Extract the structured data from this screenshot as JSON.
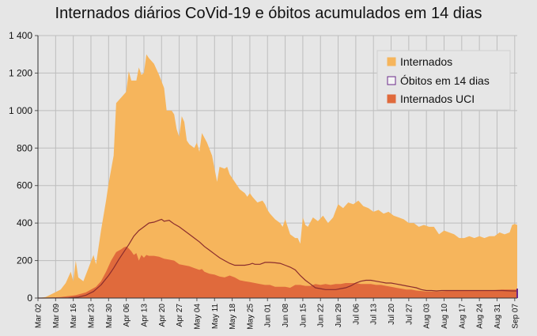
{
  "chart_data": {
    "type": "area",
    "title": "Internados diários CoVid-19 e óbitos acumulados em 14 dias",
    "xlabel": "",
    "ylabel": "",
    "ylim": [
      0,
      1400
    ],
    "yticks": [
      0,
      200,
      400,
      600,
      800,
      1000,
      1200,
      1400
    ],
    "ytick_labels": [
      "0",
      "200",
      "400",
      "600",
      "800",
      "1 000",
      "1 200",
      "1 400"
    ],
    "xlim": [
      1,
      191
    ],
    "x_ticks": [
      {
        "label": "Mar 02",
        "day": 1
      },
      {
        "label": "Mar 09",
        "day": 8
      },
      {
        "label": "Mar 16",
        "day": 15
      },
      {
        "label": "Mar 23",
        "day": 22
      },
      {
        "label": "Mar 30",
        "day": 29
      },
      {
        "label": "Apr 06",
        "day": 36
      },
      {
        "label": "Apr 13",
        "day": 43
      },
      {
        "label": "Apr 20",
        "day": 50
      },
      {
        "label": "Apr 27",
        "day": 57
      },
      {
        "label": "May 04",
        "day": 64
      },
      {
        "label": "May 11",
        "day": 71
      },
      {
        "label": "May 18",
        "day": 78
      },
      {
        "label": "May 25",
        "day": 85
      },
      {
        "label": "Jun 01",
        "day": 92
      },
      {
        "label": "Jun 08",
        "day": 99
      },
      {
        "label": "Jun 15",
        "day": 106
      },
      {
        "label": "Jun 22",
        "day": 113
      },
      {
        "label": "Jun 29",
        "day": 120
      },
      {
        "label": "Jul 06",
        "day": 127
      },
      {
        "label": "Jul 13",
        "day": 134
      },
      {
        "label": "Jul 20",
        "day": 141
      },
      {
        "label": "Jul 27",
        "day": 148
      },
      {
        "label": "Aug 03",
        "day": 155
      },
      {
        "label": "Aug 10",
        "day": 162
      },
      {
        "label": "Aug 17",
        "day": 169
      },
      {
        "label": "Aug 24",
        "day": 176
      },
      {
        "label": "Aug 31",
        "day": 183
      },
      {
        "label": "Sep 07",
        "day": 190
      }
    ],
    "grid": true,
    "legend_position": "top-right",
    "series": [
      {
        "name": "Internados",
        "kind": "area",
        "color": "#f6b55c",
        "points": [
          [
            1,
            0
          ],
          [
            4,
            5
          ],
          [
            7,
            25
          ],
          [
            10,
            45
          ],
          [
            12,
            80
          ],
          [
            14,
            140
          ],
          [
            15,
            90
          ],
          [
            16,
            200
          ],
          [
            17,
            110
          ],
          [
            19,
            90
          ],
          [
            21,
            160
          ],
          [
            23,
            230
          ],
          [
            24,
            180
          ],
          [
            26,
            360
          ],
          [
            28,
            520
          ],
          [
            29,
            610
          ],
          [
            31,
            760
          ],
          [
            32,
            1040
          ],
          [
            34,
            1070
          ],
          [
            36,
            1100
          ],
          [
            37,
            1210
          ],
          [
            38,
            1160
          ],
          [
            40,
            1160
          ],
          [
            41,
            1230
          ],
          [
            42,
            1190
          ],
          [
            43,
            1200
          ],
          [
            44,
            1300
          ],
          [
            45,
            1280
          ],
          [
            47,
            1250
          ],
          [
            49,
            1190
          ],
          [
            51,
            1120
          ],
          [
            52,
            1000
          ],
          [
            54,
            1000
          ],
          [
            55,
            980
          ],
          [
            56,
            900
          ],
          [
            57,
            860
          ],
          [
            58,
            970
          ],
          [
            59,
            940
          ],
          [
            60,
            840
          ],
          [
            61,
            820
          ],
          [
            63,
            800
          ],
          [
            64,
            830
          ],
          [
            65,
            780
          ],
          [
            66,
            880
          ],
          [
            68,
            830
          ],
          [
            70,
            760
          ],
          [
            71,
            690
          ],
          [
            72,
            620
          ],
          [
            73,
            700
          ],
          [
            75,
            690
          ],
          [
            76,
            700
          ],
          [
            77,
            660
          ],
          [
            79,
            620
          ],
          [
            81,
            580
          ],
          [
            83,
            560
          ],
          [
            84,
            540
          ],
          [
            85,
            560
          ],
          [
            86,
            540
          ],
          [
            88,
            510
          ],
          [
            90,
            520
          ],
          [
            91,
            500
          ],
          [
            92,
            470
          ],
          [
            93,
            450
          ],
          [
            95,
            420
          ],
          [
            97,
            400
          ],
          [
            98,
            380
          ],
          [
            99,
            420
          ],
          [
            100,
            380
          ],
          [
            101,
            340
          ],
          [
            103,
            320
          ],
          [
            104,
            320
          ],
          [
            105,
            290
          ],
          [
            106,
            430
          ],
          [
            107,
            390
          ],
          [
            108,
            380
          ],
          [
            110,
            430
          ],
          [
            112,
            410
          ],
          [
            114,
            440
          ],
          [
            116,
            400
          ],
          [
            118,
            430
          ],
          [
            120,
            500
          ],
          [
            122,
            480
          ],
          [
            124,
            510
          ],
          [
            126,
            500
          ],
          [
            128,
            520
          ],
          [
            130,
            490
          ],
          [
            132,
            480
          ],
          [
            134,
            460
          ],
          [
            136,
            470
          ],
          [
            138,
            450
          ],
          [
            140,
            460
          ],
          [
            142,
            440
          ],
          [
            144,
            430
          ],
          [
            146,
            420
          ],
          [
            148,
            400
          ],
          [
            150,
            400
          ],
          [
            152,
            380
          ],
          [
            154,
            390
          ],
          [
            156,
            380
          ],
          [
            158,
            380
          ],
          [
            160,
            340
          ],
          [
            162,
            360
          ],
          [
            164,
            350
          ],
          [
            166,
            340
          ],
          [
            168,
            320
          ],
          [
            170,
            320
          ],
          [
            172,
            330
          ],
          [
            174,
            320
          ],
          [
            176,
            330
          ],
          [
            178,
            320
          ],
          [
            180,
            330
          ],
          [
            182,
            330
          ],
          [
            184,
            350
          ],
          [
            186,
            340
          ],
          [
            188,
            350
          ],
          [
            189,
            390
          ],
          [
            190,
            395
          ],
          [
            191,
            390
          ]
        ]
      },
      {
        "name": "Internados UCI",
        "kind": "area",
        "color": "#e06a3c",
        "points": [
          [
            1,
            0
          ],
          [
            10,
            5
          ],
          [
            16,
            15
          ],
          [
            20,
            30
          ],
          [
            24,
            60
          ],
          [
            26,
            90
          ],
          [
            28,
            140
          ],
          [
            30,
            200
          ],
          [
            32,
            245
          ],
          [
            34,
            260
          ],
          [
            35,
            270
          ],
          [
            36,
            275
          ],
          [
            37,
            265
          ],
          [
            38,
            250
          ],
          [
            39,
            230
          ],
          [
            40,
            240
          ],
          [
            41,
            200
          ],
          [
            42,
            230
          ],
          [
            43,
            215
          ],
          [
            44,
            230
          ],
          [
            45,
            225
          ],
          [
            47,
            225
          ],
          [
            49,
            220
          ],
          [
            51,
            210
          ],
          [
            53,
            205
          ],
          [
            55,
            200
          ],
          [
            57,
            180
          ],
          [
            59,
            175
          ],
          [
            61,
            170
          ],
          [
            63,
            160
          ],
          [
            65,
            150
          ],
          [
            66,
            155
          ],
          [
            67,
            140
          ],
          [
            69,
            130
          ],
          [
            71,
            125
          ],
          [
            73,
            115
          ],
          [
            75,
            110
          ],
          [
            77,
            120
          ],
          [
            79,
            110
          ],
          [
            81,
            95
          ],
          [
            83,
            90
          ],
          [
            85,
            85
          ],
          [
            87,
            80
          ],
          [
            89,
            75
          ],
          [
            91,
            70
          ],
          [
            93,
            70
          ],
          [
            95,
            60
          ],
          [
            97,
            60
          ],
          [
            99,
            60
          ],
          [
            101,
            55
          ],
          [
            103,
            70
          ],
          [
            105,
            70
          ],
          [
            107,
            65
          ],
          [
            109,
            65
          ],
          [
            111,
            75
          ],
          [
            113,
            70
          ],
          [
            115,
            75
          ],
          [
            117,
            70
          ],
          [
            119,
            75
          ],
          [
            121,
            75
          ],
          [
            123,
            80
          ],
          [
            125,
            80
          ],
          [
            127,
            80
          ],
          [
            129,
            75
          ],
          [
            131,
            75
          ],
          [
            133,
            75
          ],
          [
            135,
            70
          ],
          [
            137,
            70
          ],
          [
            139,
            65
          ],
          [
            141,
            60
          ],
          [
            143,
            55
          ],
          [
            145,
            50
          ],
          [
            147,
            45
          ],
          [
            149,
            45
          ],
          [
            151,
            40
          ],
          [
            155,
            35
          ],
          [
            160,
            35
          ],
          [
            165,
            40
          ],
          [
            170,
            40
          ],
          [
            175,
            40
          ],
          [
            180,
            40
          ],
          [
            185,
            45
          ],
          [
            191,
            45
          ]
        ]
      },
      {
        "name": "Óbitos em 14 dias",
        "kind": "line",
        "color": "#8b2d2d",
        "points": [
          [
            1,
            0
          ],
          [
            13,
            1
          ],
          [
            17,
            5
          ],
          [
            20,
            15
          ],
          [
            23,
            35
          ],
          [
            26,
            70
          ],
          [
            29,
            120
          ],
          [
            31,
            160
          ],
          [
            33,
            205
          ],
          [
            35,
            245
          ],
          [
            37,
            285
          ],
          [
            39,
            330
          ],
          [
            41,
            360
          ],
          [
            43,
            380
          ],
          [
            45,
            400
          ],
          [
            47,
            405
          ],
          [
            49,
            415
          ],
          [
            50,
            420
          ],
          [
            51,
            410
          ],
          [
            53,
            415
          ],
          [
            54,
            405
          ],
          [
            55,
            395
          ],
          [
            57,
            380
          ],
          [
            59,
            360
          ],
          [
            61,
            340
          ],
          [
            63,
            320
          ],
          [
            65,
            300
          ],
          [
            67,
            275
          ],
          [
            69,
            255
          ],
          [
            71,
            235
          ],
          [
            73,
            215
          ],
          [
            75,
            200
          ],
          [
            77,
            185
          ],
          [
            79,
            175
          ],
          [
            81,
            175
          ],
          [
            83,
            175
          ],
          [
            85,
            180
          ],
          [
            86,
            185
          ],
          [
            87,
            180
          ],
          [
            89,
            180
          ],
          [
            91,
            190
          ],
          [
            93,
            190
          ],
          [
            95,
            188
          ],
          [
            97,
            185
          ],
          [
            99,
            175
          ],
          [
            101,
            165
          ],
          [
            103,
            150
          ],
          [
            105,
            120
          ],
          [
            107,
            95
          ],
          [
            109,
            75
          ],
          [
            111,
            55
          ],
          [
            113,
            50
          ],
          [
            115,
            45
          ],
          [
            117,
            45
          ],
          [
            119,
            45
          ],
          [
            121,
            50
          ],
          [
            123,
            55
          ],
          [
            125,
            65
          ],
          [
            127,
            80
          ],
          [
            129,
            90
          ],
          [
            131,
            95
          ],
          [
            133,
            95
          ],
          [
            135,
            90
          ],
          [
            137,
            85
          ],
          [
            139,
            80
          ],
          [
            141,
            80
          ],
          [
            143,
            75
          ],
          [
            145,
            70
          ],
          [
            147,
            65
          ],
          [
            149,
            60
          ],
          [
            151,
            55
          ],
          [
            153,
            45
          ],
          [
            155,
            40
          ],
          [
            157,
            40
          ],
          [
            159,
            38
          ],
          [
            161,
            40
          ],
          [
            165,
            40
          ],
          [
            169,
            40
          ],
          [
            173,
            40
          ],
          [
            177,
            40
          ],
          [
            181,
            40
          ],
          [
            185,
            40
          ],
          [
            189,
            38
          ],
          [
            191,
            38
          ]
        ]
      }
    ]
  }
}
